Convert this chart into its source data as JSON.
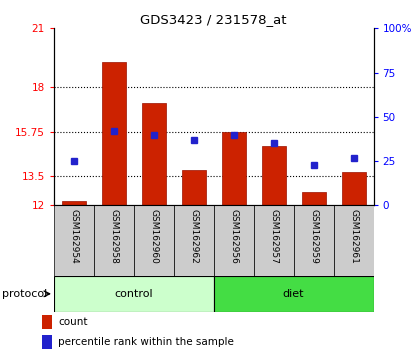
{
  "title": "GDS3423 / 231578_at",
  "samples": [
    "GSM162954",
    "GSM162958",
    "GSM162960",
    "GSM162962",
    "GSM162956",
    "GSM162957",
    "GSM162959",
    "GSM162961"
  ],
  "counts": [
    12.2,
    19.3,
    17.2,
    13.8,
    15.75,
    15.0,
    12.7,
    13.7
  ],
  "percentiles": [
    25,
    42,
    40,
    37,
    40,
    35,
    23,
    27
  ],
  "ylim_left": [
    12,
    21
  ],
  "ylim_right": [
    0,
    100
  ],
  "yticks_left": [
    12,
    13.5,
    15.75,
    18,
    21
  ],
  "yticks_right": [
    0,
    25,
    50,
    75,
    100
  ],
  "ytick_labels_left": [
    "12",
    "13.5",
    "15.75",
    "18",
    "21"
  ],
  "ytick_labels_right": [
    "0",
    "25",
    "50",
    "75",
    "100%"
  ],
  "bar_color": "#cc2200",
  "dot_color": "#2222cc",
  "protocol_groups": [
    {
      "label": "control",
      "start": 0,
      "end": 4,
      "color": "#ccffcc"
    },
    {
      "label": "diet",
      "start": 4,
      "end": 8,
      "color": "#44dd44"
    }
  ],
  "protocol_label": "protocol",
  "legend_items": [
    {
      "label": "count",
      "color": "#cc2200"
    },
    {
      "label": "percentile rank within the sample",
      "color": "#2222cc"
    }
  ],
  "sample_box_color": "#cccccc",
  "grid_ticks": [
    13.5,
    15.75,
    18
  ]
}
